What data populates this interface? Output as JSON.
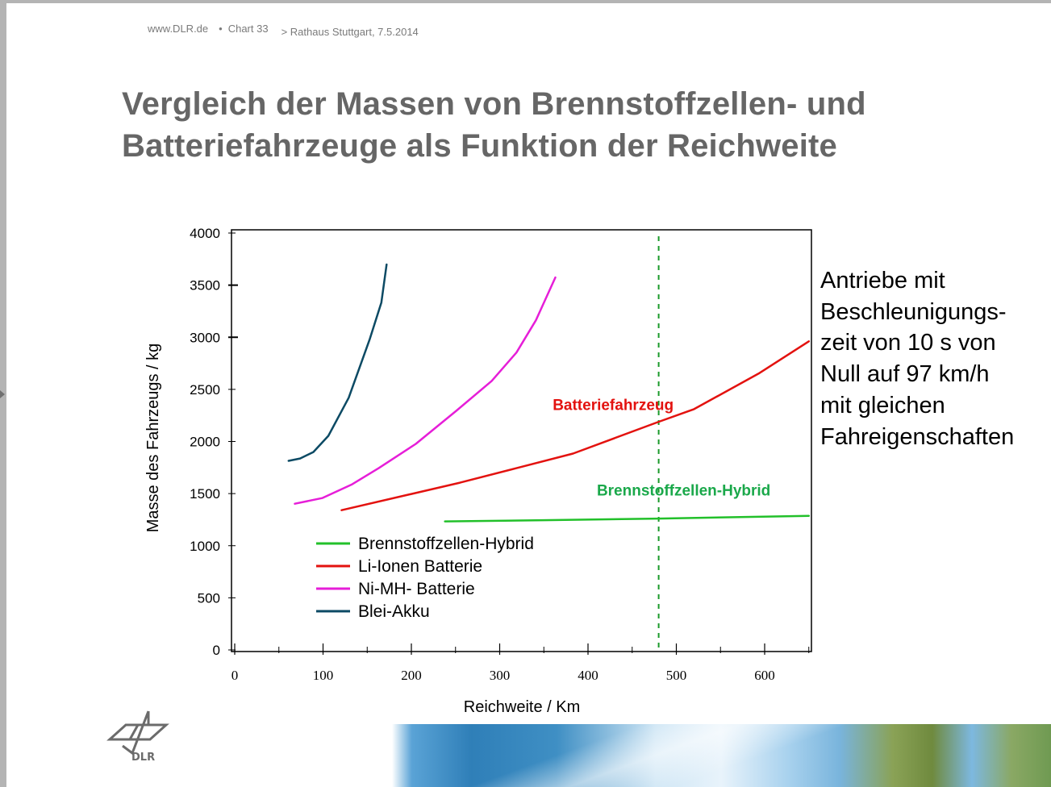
{
  "header": {
    "site": "www.DLR.de",
    "separator": "•",
    "chart_label": "Chart 33",
    "location": "> Rathaus  Stuttgart,  7.5.2014"
  },
  "title": {
    "line1": "Vergleich der Massen von Brennstoffzellen- und",
    "line2": "Batteriefahrzeuge als Funktion der Reichweite"
  },
  "note": {
    "lines": [
      "Antriebe mit",
      "Beschleunigungs-",
      "zeit von 10 s von",
      "Null auf 97 km/h",
      "mit gleichen",
      "Fahreigenschaften"
    ]
  },
  "logo": {
    "text": "DLR",
    "icon": "dlr-logo-icon"
  },
  "colors": {
    "title": "#666666",
    "brennstoff": "#22c02a",
    "li_ionen": "#e3120f",
    "ni_mh": "#e61ed8",
    "blei": "#0c4a64",
    "annotation_red": "#e3120f",
    "annotation_green": "#1aa84a",
    "dashed": "#1a9a2a"
  },
  "chart_data": {
    "type": "line",
    "title": "Vergleich der Massen von Brennstoffzellen- und Batteriefahrzeuge als Funktion der Reichweite",
    "xlabel": "Reichweite / Km",
    "ylabel": "Masse des Fahrzeugs / kg",
    "xlim": [
      0,
      650
    ],
    "ylim": [
      0,
      4000
    ],
    "xticks": [
      0,
      100,
      200,
      300,
      400,
      500,
      600
    ],
    "xticks_minor": [
      50,
      150,
      250,
      350,
      450,
      550,
      650
    ],
    "yticks": [
      0,
      500,
      1000,
      1500,
      2000,
      2500,
      3000,
      3500,
      4000
    ],
    "grid": false,
    "legend_position": "lower left inside",
    "series": [
      {
        "name": "Brennstoffzellen-Hybrid",
        "color": "#22c02a",
        "x": [
          238,
          350,
          480,
          650
        ],
        "y": [
          1233,
          1245,
          1260,
          1287
        ]
      },
      {
        "name": "Li-Ionen Batterie",
        "color": "#e3120f",
        "x": [
          121,
          200,
          255,
          319,
          383,
          479,
          520,
          593,
          650
        ],
        "y": [
          1341,
          1496,
          1605,
          1744,
          1884,
          2186,
          2310,
          2651,
          2961
        ]
      },
      {
        "name": "Ni-MH- Batterie",
        "color": "#e61ed8",
        "x": [
          68,
          99,
          133,
          163,
          205,
          251,
          291,
          319,
          341,
          363
        ],
        "y": [
          1403,
          1457,
          1589,
          1744,
          1977,
          2295,
          2581,
          2853,
          3163,
          3574
        ]
      },
      {
        "name": "Blei-Akku",
        "color": "#0c4a64",
        "x": [
          61,
          74,
          89,
          106,
          129,
          153,
          166,
          172
        ],
        "y": [
          1814,
          1837,
          1899,
          2054,
          2419,
          2984,
          3333,
          3698
        ]
      }
    ],
    "annotations": [
      {
        "text": "Batteriefahrzeug",
        "x": 360,
        "y": 2300,
        "color": "#e3120f"
      },
      {
        "text": "Brennstoffzellen-Hybrid",
        "x": 410,
        "y": 1480,
        "color": "#1aa84a"
      }
    ],
    "reference_lines": [
      {
        "type": "vertical",
        "x": 480,
        "style": "dashed",
        "color": "#1a9a2a"
      }
    ]
  }
}
